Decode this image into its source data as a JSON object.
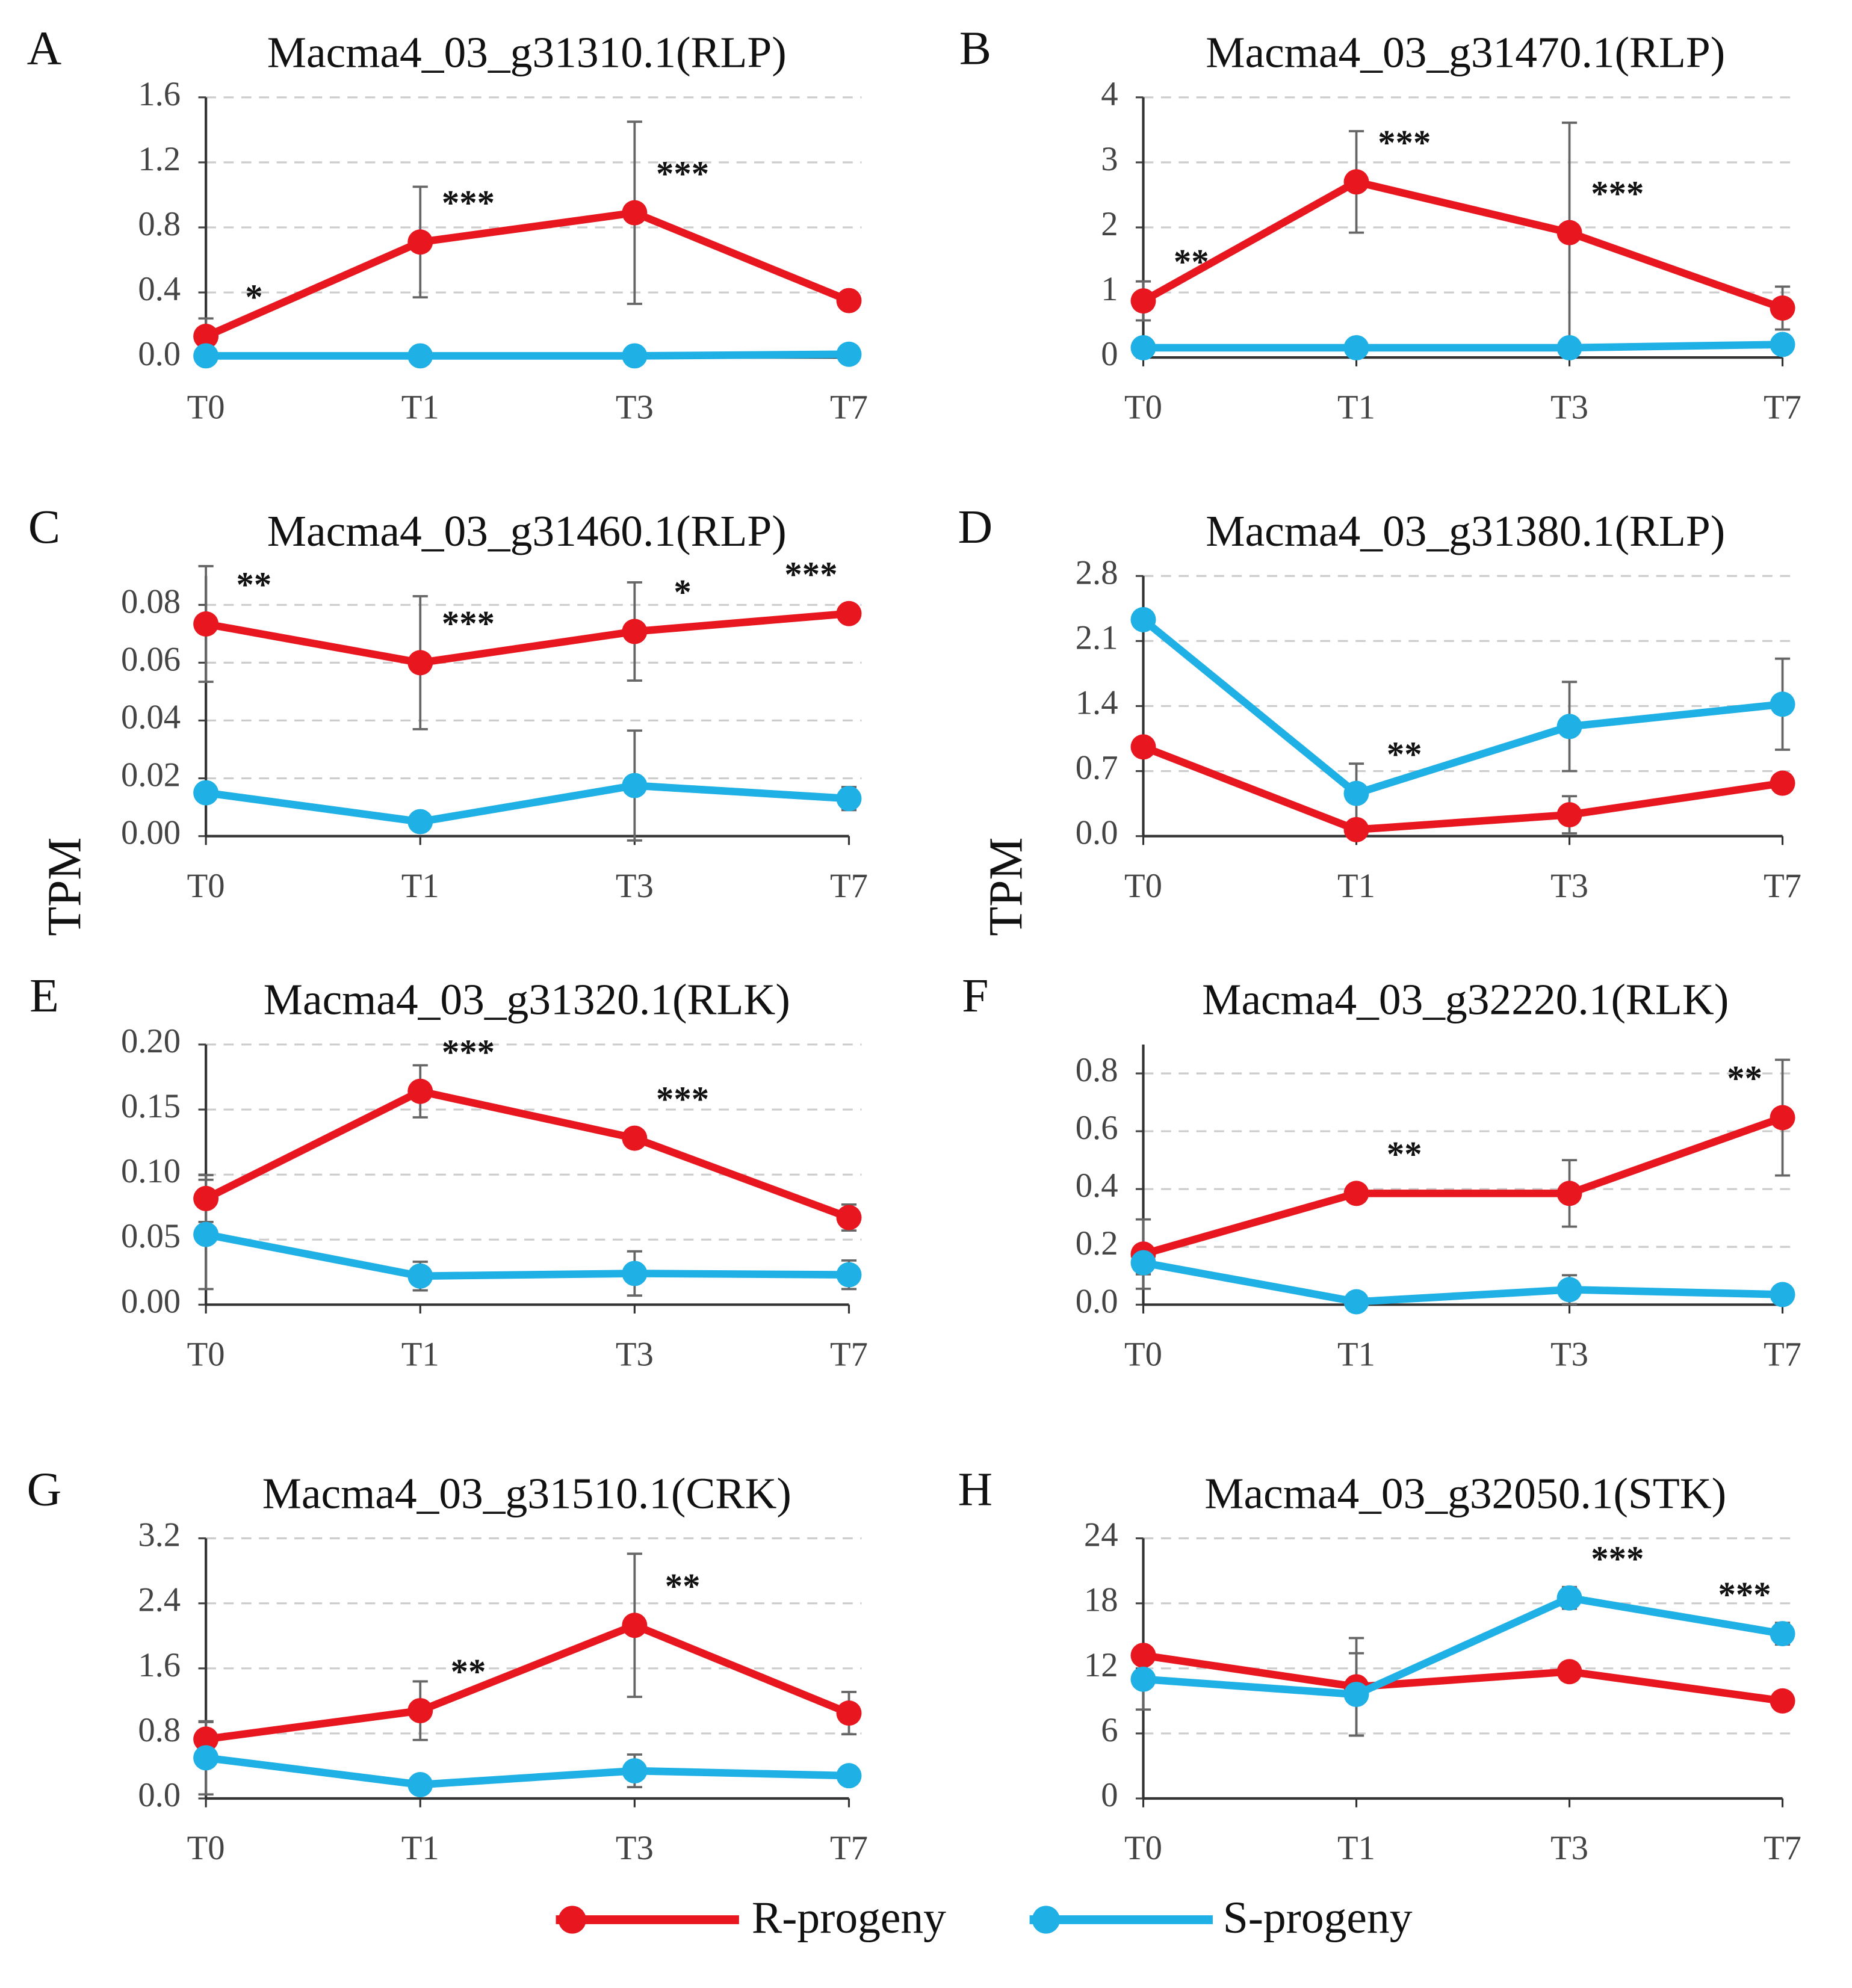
{
  "chart_data": [
    {
      "type": "line",
      "panel": "A",
      "title": "Macma4_03_g31310.1(RLP)",
      "categories": [
        "T0",
        "T1",
        "T3",
        "T7"
      ],
      "series": [
        {
          "name": "R-progeny",
          "color": "#e8171f",
          "values": [
            0.13,
            0.71,
            0.89,
            0.35
          ],
          "errors": [
            0.11,
            0.34,
            0.56,
            0.02
          ]
        },
        {
          "name": "S-progeny",
          "color": "#1fb0e6",
          "values": [
            0.01,
            0.01,
            0.01,
            0.02
          ],
          "errors": [
            0.005,
            0.005,
            0.005,
            0.005
          ]
        }
      ],
      "annotations": [
        "*",
        "***",
        "***",
        null
      ],
      "ylim": [
        0,
        1.6
      ],
      "yticks": [
        {
          "value": 0,
          "label": "0.0"
        },
        0.4,
        0.8,
        1.2,
        1.6
      ],
      "grid": true
    },
    {
      "type": "line",
      "panel": "B",
      "title": "Macma4_03_g31470.1(RLP)",
      "categories": [
        "T0",
        "T1",
        "T3",
        "T7"
      ],
      "series": [
        {
          "name": "R-progeny",
          "color": "#e8171f",
          "values": [
            0.87,
            2.7,
            1.92,
            0.76
          ],
          "errors": [
            0.3,
            0.78,
            1.69,
            0.33
          ]
        },
        {
          "name": "S-progeny",
          "color": "#1fb0e6",
          "values": [
            0.15,
            0.15,
            0.15,
            0.2
          ],
          "errors": [
            0.05,
            0.05,
            0.05,
            0.05
          ]
        }
      ],
      "annotations": [
        "**",
        "***",
        "***",
        null
      ],
      "ylim": [
        0,
        4
      ],
      "yticks": [
        0,
        1,
        2,
        3,
        4
      ],
      "grid": true
    },
    {
      "type": "line",
      "panel": "C",
      "title": "Macma4_03_g31460.1(RLP)",
      "ylabel": "TPM",
      "categories": [
        "T0",
        "T1",
        "T3",
        "T7"
      ],
      "series": [
        {
          "name": "R-progeny",
          "color": "#e8171f",
          "values": [
            0.0734,
            0.06,
            0.0708,
            0.077
          ],
          "errors": [
            0.02,
            0.023,
            0.017,
            0.001
          ]
        },
        {
          "name": "S-progeny",
          "color": "#1fb0e6",
          "values": [
            0.015,
            0.005,
            0.0175,
            0.013
          ],
          "errors": [
            0.003,
            0.002,
            0.019,
            0.004
          ]
        }
      ],
      "annotations": [
        "**",
        "***",
        "*",
        "***"
      ],
      "ylim": [
        0,
        0.09
      ],
      "yticks": [
        {
          "value": 0,
          "label": "0.00"
        },
        0.02,
        0.04,
        0.06,
        0.08
      ],
      "grid": true
    },
    {
      "type": "line",
      "panel": "D",
      "title": "Macma4_03_g31380.1(RLP)",
      "ylabel": "TPM",
      "categories": [
        "T0",
        "T1",
        "T3",
        "T7"
      ],
      "series": [
        {
          "name": "R-progeny",
          "color": "#e8171f",
          "values": [
            0.96,
            0.07,
            0.23,
            0.57
          ],
          "errors": [
            0.05,
            0.05,
            0.2,
            0.05
          ]
        },
        {
          "name": "S-progeny",
          "color": "#1fb0e6",
          "values": [
            2.33,
            0.46,
            1.18,
            1.42
          ],
          "errors": [
            0.1,
            0.32,
            0.48,
            0.49
          ]
        }
      ],
      "annotations": [
        null,
        "**",
        null,
        null
      ],
      "ylim": [
        0,
        2.8
      ],
      "yticks": [
        {
          "value": 0,
          "label": "0.0"
        },
        0.7,
        1.4,
        2.1,
        2.8
      ],
      "grid": true
    },
    {
      "type": "line",
      "panel": "E",
      "title": "Macma4_03_g31320.1(RLK)",
      "categories": [
        "T0",
        "T1",
        "T3",
        "T7"
      ],
      "series": [
        {
          "name": "R-progeny",
          "color": "#e8171f",
          "values": [
            0.0816,
            0.164,
            0.128,
            0.067
          ],
          "errors": [
            0.018,
            0.02,
            0.005,
            0.01
          ]
        },
        {
          "name": "S-progeny",
          "color": "#1fb0e6",
          "values": [
            0.054,
            0.022,
            0.024,
            0.023
          ],
          "errors": [
            0.042,
            0.011,
            0.017,
            0.011
          ]
        }
      ],
      "annotations": [
        null,
        "***",
        "***",
        null
      ],
      "ylim": [
        0,
        0.2
      ],
      "yticks": [
        {
          "value": 0,
          "label": "0.00"
        },
        0.05,
        {
          "value": 0.1,
          "label": "0.10"
        },
        0.15,
        {
          "value": 0.2,
          "label": "0.20"
        }
      ],
      "grid": true
    },
    {
      "type": "line",
      "panel": "F",
      "title": "Macma4_03_g32220.1(RLK)",
      "categories": [
        "T0",
        "T1",
        "T3",
        "T7"
      ],
      "series": [
        {
          "name": "R-progeny",
          "color": "#e8171f",
          "values": [
            0.175,
            0.385,
            0.385,
            0.647
          ],
          "errors": [
            0.12,
            0.03,
            0.115,
            0.2
          ]
        },
        {
          "name": "S-progeny",
          "color": "#1fb0e6",
          "values": [
            0.145,
            0.01,
            0.052,
            0.035
          ],
          "errors": [
            0.04,
            0.01,
            0.05,
            0.01
          ]
        }
      ],
      "annotations": [
        null,
        "**",
        null,
        "**"
      ],
      "ylim": [
        0,
        0.9
      ],
      "yticks": [
        {
          "value": 0,
          "label": "0.0"
        },
        0.2,
        0.4,
        0.6,
        0.8
      ],
      "grid": true
    },
    {
      "type": "line",
      "panel": "G",
      "title": "Macma4_03_g31510.1(CRK)",
      "categories": [
        "T0",
        "T1",
        "T3",
        "T7"
      ],
      "series": [
        {
          "name": "R-progeny",
          "color": "#e8171f",
          "values": [
            0.73,
            1.08,
            2.13,
            1.05
          ],
          "errors": [
            0.21,
            0.36,
            0.88,
            0.26
          ]
        },
        {
          "name": "S-progeny",
          "color": "#1fb0e6",
          "values": [
            0.5,
            0.17,
            0.34,
            0.28
          ],
          "errors": [
            0.45,
            0.03,
            0.2,
            0.03
          ]
        }
      ],
      "annotations": [
        null,
        "**",
        "**",
        null
      ],
      "ylim": [
        0,
        3.2
      ],
      "yticks": [
        {
          "value": 0,
          "label": "0.0"
        },
        0.8,
        1.6,
        2.4,
        3.2
      ],
      "grid": true
    },
    {
      "type": "line",
      "panel": "H",
      "title": "Macma4_03_g32050.1(STK)",
      "categories": [
        "T0",
        "T1",
        "T3",
        "T7"
      ],
      "series": [
        {
          "name": "R-progeny",
          "color": "#e8171f",
          "values": [
            13.2,
            10.3,
            11.7,
            9.0
          ],
          "errors": [
            0.6,
            4.5,
            0.8,
            0.4
          ]
        },
        {
          "name": "S-progeny",
          "color": "#1fb0e6",
          "values": [
            11.0,
            9.6,
            18.5,
            15.2
          ],
          "errors": [
            2.8,
            3.8,
            1.0,
            1.0
          ]
        }
      ],
      "annotations": [
        null,
        null,
        "***",
        "***"
      ],
      "ylim": [
        0,
        24
      ],
      "yticks": [
        0,
        6,
        12,
        18,
        24
      ],
      "grid": true
    }
  ]
}
